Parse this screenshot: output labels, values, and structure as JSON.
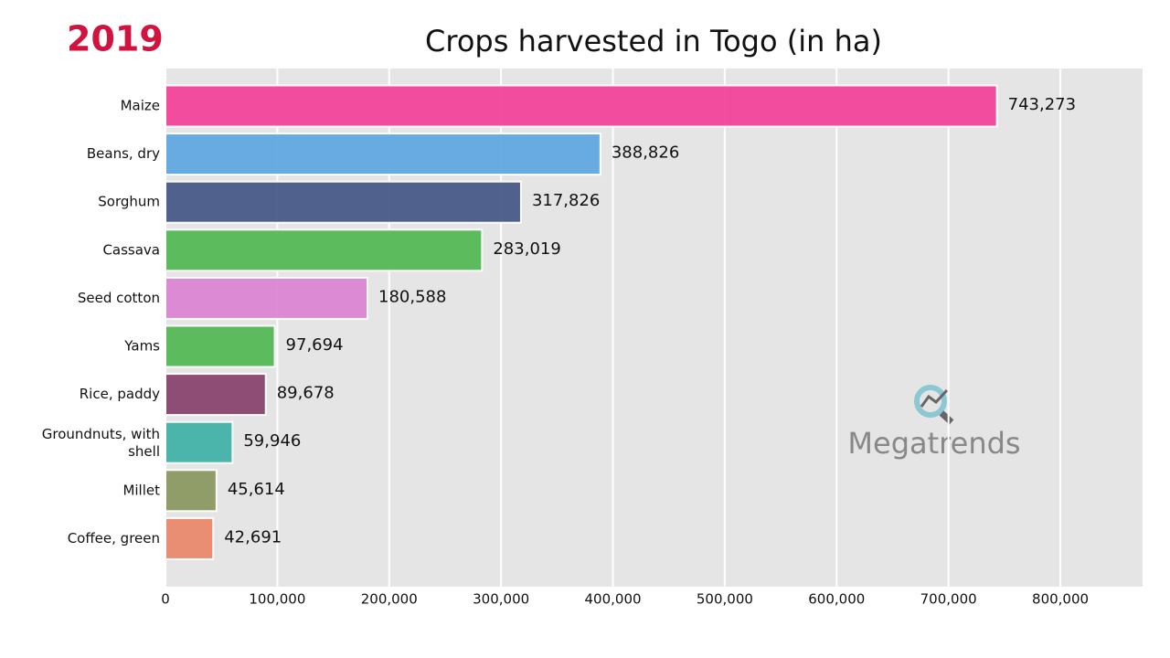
{
  "chart_data": {
    "type": "barh",
    "title": "Crops harvested in Togo (in ha)",
    "year": "2019",
    "watermark": "Megatrends",
    "categories": [
      "Maize",
      "Beans, dry",
      "Sorghum",
      "Cassava",
      "Seed cotton",
      "Yams",
      "Rice, paddy",
      "Groundnuts, with shell",
      "Millet",
      "Coffee, green"
    ],
    "values": [
      743273,
      388826,
      317826,
      283019,
      180588,
      97694,
      89678,
      59946,
      45614,
      42691
    ],
    "value_labels": [
      "743,273",
      "388,826",
      "317,826",
      "283,019",
      "180,588",
      "97,694",
      "89,678",
      "59,946",
      "45,614",
      "42,691"
    ],
    "colors": [
      "#f2449a",
      "#62a8e3",
      "#4a5a8a",
      "#55b955",
      "#dc86d4",
      "#55b955",
      "#8a4570",
      "#43b3a8",
      "#8c9a62",
      "#ea8a6c"
    ],
    "xlim": [
      0,
      873500
    ],
    "xticks": [
      0,
      {
        "value": 100000,
        "label": "100,000"
      },
      {
        "value": 200000,
        "label": "200,000"
      },
      {
        "value": 300000,
        "label": "300,000"
      },
      {
        "value": 400000,
        "label": "400,000"
      },
      {
        "value": 500000,
        "label": "500,000"
      },
      {
        "value": 600000,
        "label": "600,000"
      },
      {
        "value": 700000,
        "label": "700,000"
      },
      {
        "value": 800000,
        "label": "800,000"
      }
    ],
    "grid": true
  }
}
